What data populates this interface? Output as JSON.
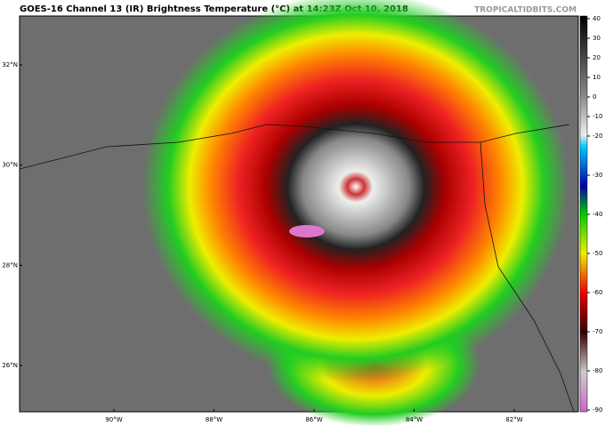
{
  "header": {
    "title": "GOES-16 Channel 13 (IR) Brightness Temperature (°C) at 14:23Z Oct 10, 2018",
    "watermark": "TROPICALTIDBITS.COM"
  },
  "map": {
    "latitudes": [
      "32°N",
      "30°N",
      "28°N",
      "26°N"
    ],
    "longitudes": [
      "90°W",
      "88°W",
      "86°W",
      "84°W",
      "82°W"
    ]
  },
  "colorbar": {
    "ticks": [
      40,
      30,
      20,
      10,
      0,
      -10,
      -20,
      -30,
      -40,
      -50,
      -60,
      -70,
      -80,
      -90
    ]
  }
}
